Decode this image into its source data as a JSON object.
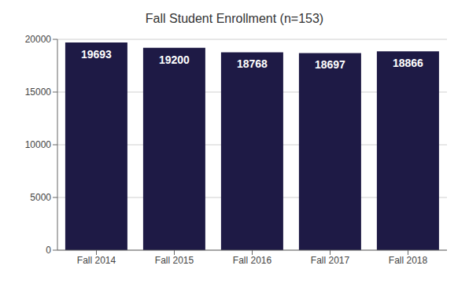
{
  "chart_data": {
    "type": "bar",
    "title": "Fall Student Enrollment  (n=153)",
    "categories": [
      "Fall 2014",
      "Fall 2015",
      "Fall 2016",
      "Fall 2017",
      "Fall 2018"
    ],
    "values": [
      19693,
      19200,
      18768,
      18697,
      18866
    ],
    "color": "#1e1a45",
    "ylim": [
      0,
      20000
    ],
    "yticks": [
      0,
      5000,
      10000,
      15000,
      20000
    ],
    "grid": true,
    "data_labels": true
  }
}
